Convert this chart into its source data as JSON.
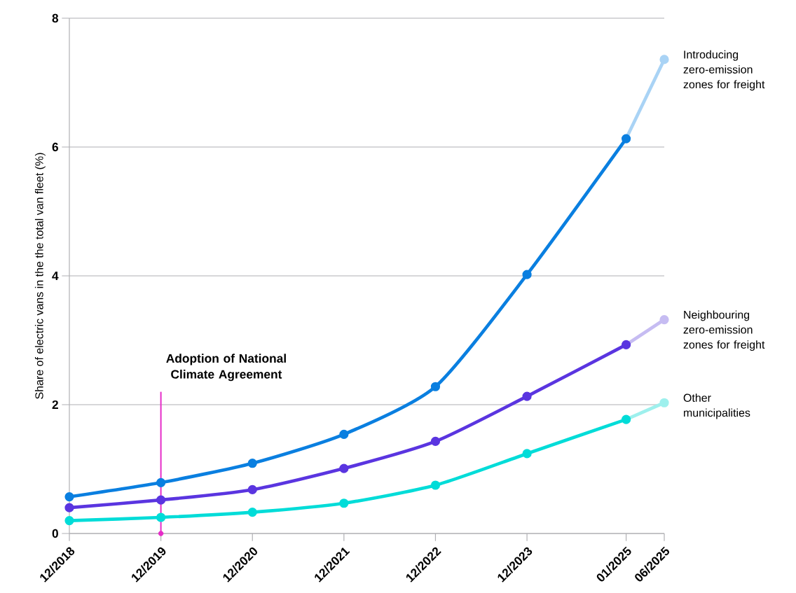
{
  "chart_data": {
    "type": "line",
    "ylabel": "Share of electric vans in the the total van fleet (%)",
    "x": [
      "2018-12",
      "2019-12",
      "2020-12",
      "2021-12",
      "2022-12",
      "2023-12",
      "2025-01",
      "2025-06"
    ],
    "series": [
      {
        "name": "Introducing zero-emission zones for freight",
        "color": "#0a7fe0",
        "values": [
          0.57,
          0.79,
          1.09,
          1.54,
          2.28,
          4.02,
          6.13,
          null
        ]
      },
      {
        "name": "Neighbouring zero-emission zones for freight",
        "color": "#5a35e0",
        "values": [
          0.4,
          0.52,
          0.68,
          1.01,
          1.43,
          2.13,
          2.93,
          null
        ]
      },
      {
        "name": "Other municipalities",
        "color": "#00dcd8",
        "values": [
          0.2,
          0.25,
          0.33,
          0.47,
          0.75,
          1.24,
          1.77,
          null
        ]
      },
      {
        "color": "#a9d3f5",
        "values": [
          null,
          null,
          null,
          null,
          null,
          null,
          6.13,
          7.36
        ]
      },
      {
        "color": "#c6bcf2",
        "values": [
          null,
          null,
          null,
          null,
          null,
          null,
          2.93,
          3.32
        ]
      },
      {
        "color": "#9ef0ed",
        "values": [
          null,
          null,
          null,
          null,
          null,
          null,
          1.77,
          2.03
        ]
      },
      {
        "type": "scatter",
        "color": "#e62cc8",
        "x": [
          "2019-12"
        ],
        "values": [
          0
        ]
      }
    ],
    "xlim": [
      "2018-12",
      "2025-06"
    ],
    "xticks": [
      {
        "value": "2018-12",
        "label": "12/2018"
      },
      {
        "value": "2019-12",
        "label": "12/2019"
      },
      {
        "value": "2020-12",
        "label": "12/2020"
      },
      {
        "value": "2021-12",
        "label": "12/2021"
      },
      {
        "value": "2022-12",
        "label": "12/2022"
      },
      {
        "value": "2023-12",
        "label": "12/2023"
      },
      {
        "value": "2025-01",
        "label": "01/2025"
      },
      {
        "value": "2025-06",
        "label": "06/2025"
      }
    ],
    "ylim": [
      0,
      8
    ],
    "yticks": [
      0,
      2,
      4,
      6,
      8
    ],
    "ref_lines": [
      {
        "axis": "x",
        "value": "2019-12",
        "label": "Adoption of National Climate Agreement",
        "color": "#e62cc8"
      }
    ],
    "grid": "y",
    "marker": "circle",
    "line_style": "solid"
  }
}
